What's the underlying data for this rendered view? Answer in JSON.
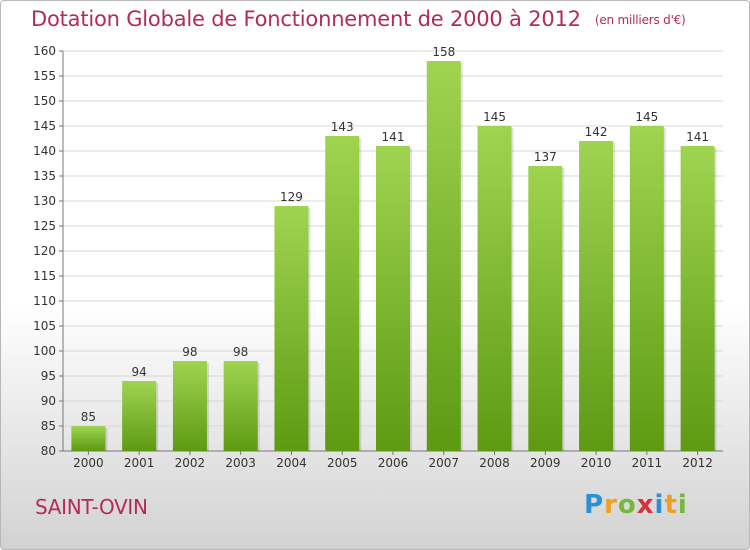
{
  "title": "Dotation Globale de Fonctionnement de 2000 à 2012",
  "unit": "(en milliers d'€)",
  "commune": "SAINT-OVIN",
  "logo": {
    "text": "Proxiti",
    "letters": [
      {
        "char": "P",
        "color": "#2e8fd4"
      },
      {
        "char": "r",
        "color": "#f0a020"
      },
      {
        "char": "o",
        "color": "#74b93a"
      },
      {
        "char": "x",
        "color": "#d4323c"
      },
      {
        "char": "i",
        "color": "#2e8fd4"
      },
      {
        "char": "t",
        "color": "#f0a020"
      },
      {
        "char": "i",
        "color": "#74b93a"
      }
    ]
  },
  "colors": {
    "bar_top": "#9fd451",
    "bar_bottom": "#5d9a12",
    "title": "#b42a5a",
    "grid": "#d8d8d8",
    "axis_text": "#333333"
  },
  "chart_data": {
    "type": "bar",
    "categories": [
      "2000",
      "2001",
      "2002",
      "2003",
      "2004",
      "2005",
      "2006",
      "2007",
      "2008",
      "2009",
      "2010",
      "2011",
      "2012"
    ],
    "values": [
      85,
      94,
      98,
      98,
      129,
      143,
      141,
      158,
      145,
      137,
      142,
      145,
      141
    ],
    "ylim": [
      80,
      160
    ],
    "yticks": [
      80,
      85,
      90,
      95,
      100,
      105,
      110,
      115,
      120,
      125,
      130,
      135,
      140,
      145,
      150,
      155,
      160
    ],
    "grid": true,
    "data_labels": true
  }
}
